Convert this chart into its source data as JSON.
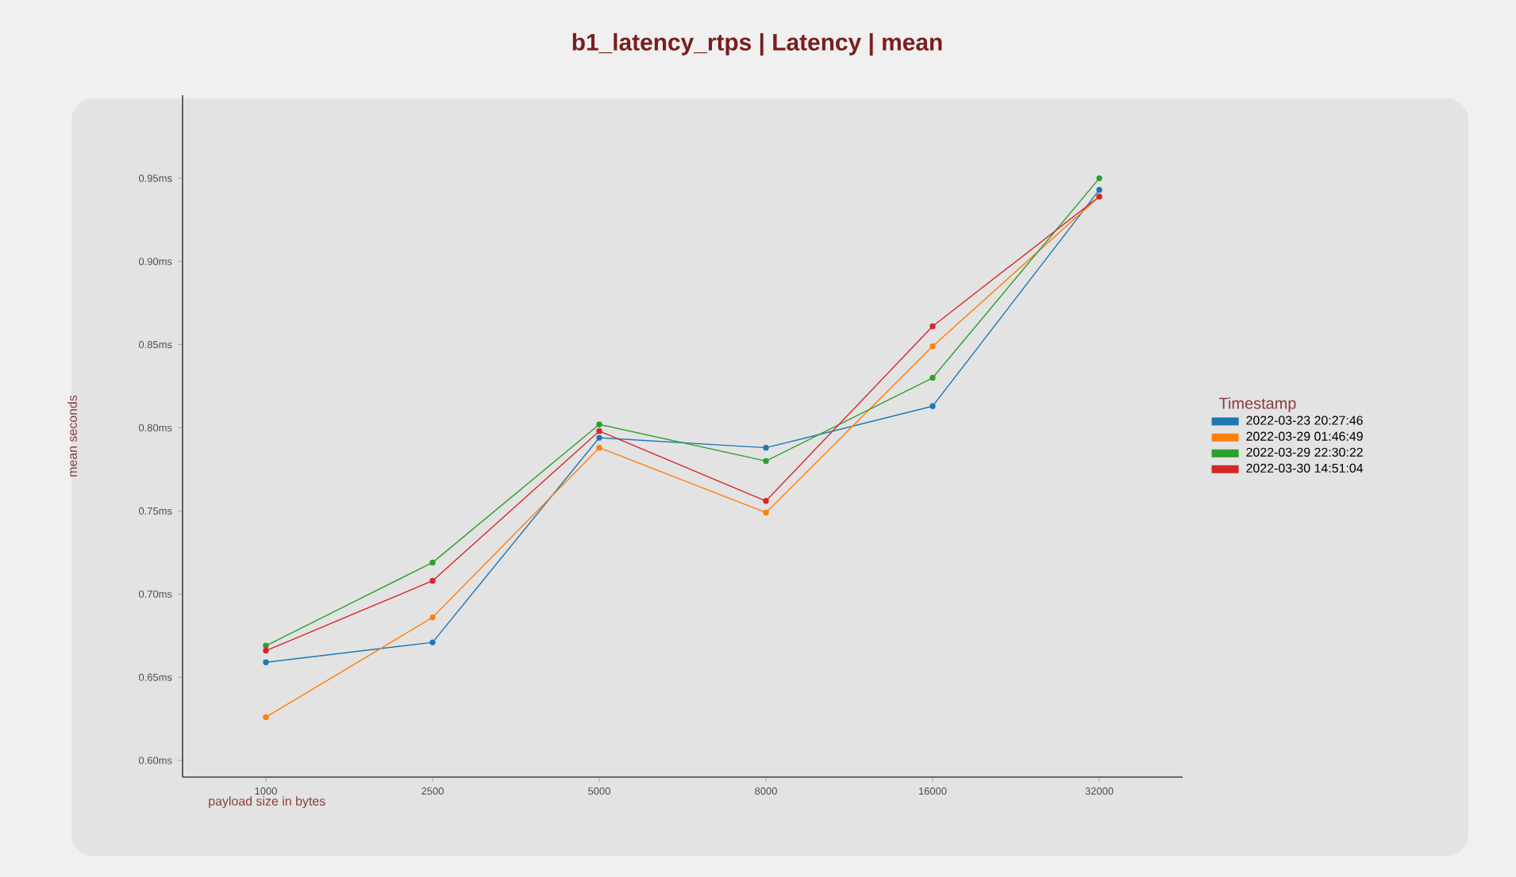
{
  "chart_data": {
    "type": "line",
    "title": "b1_latency_rtps  |  Latency  |  mean",
    "xlabel": "payload size in bytes",
    "ylabel": "mean seconds",
    "legend_title": "Timestamp",
    "categories": [
      "1000",
      "2500",
      "5000",
      "8000",
      "16000",
      "32000"
    ],
    "ylim": [
      0.59,
      1.0
    ],
    "yticks": [
      {
        "value": 0.6,
        "label": "0.60ms"
      },
      {
        "value": 0.65,
        "label": "0.65ms"
      },
      {
        "value": 0.7,
        "label": "0.70ms"
      },
      {
        "value": 0.75,
        "label": "0.75ms"
      },
      {
        "value": 0.8,
        "label": "0.80ms"
      },
      {
        "value": 0.85,
        "label": "0.85ms"
      },
      {
        "value": 0.9,
        "label": "0.90ms"
      },
      {
        "value": 0.95,
        "label": "0.95ms"
      }
    ],
    "series": [
      {
        "name": "2022-03-23 20:27:46",
        "color": "#1f77b4",
        "values": [
          0.659,
          0.671,
          0.794,
          0.788,
          0.813,
          0.943
        ]
      },
      {
        "name": "2022-03-29 01:46:49",
        "color": "#ff7f0e",
        "values": [
          0.626,
          0.686,
          0.788,
          0.749,
          0.849,
          0.939
        ]
      },
      {
        "name": "2022-03-29 22:30:22",
        "color": "#2ca02c",
        "values": [
          0.669,
          0.719,
          0.802,
          0.78,
          0.83,
          0.95
        ]
      },
      {
        "name": "2022-03-30 14:51:04",
        "color": "#d62728",
        "values": [
          0.666,
          0.708,
          0.798,
          0.756,
          0.861,
          0.939
        ]
      }
    ],
    "grid": false,
    "legend": "right",
    "marker": "circle",
    "line_style": "solid"
  }
}
